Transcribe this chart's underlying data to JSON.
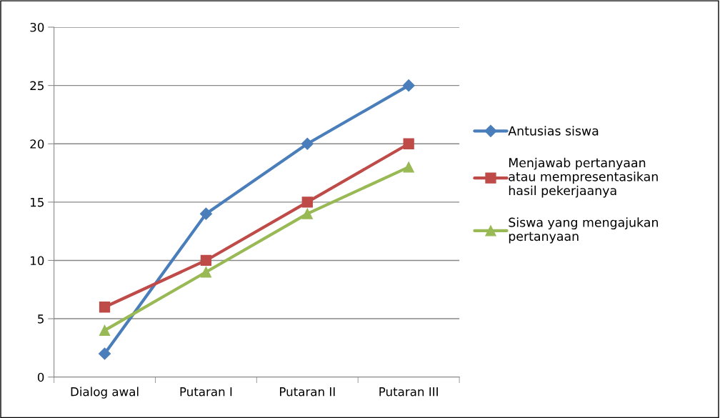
{
  "chart_data": {
    "type": "line",
    "categories": [
      "Dialog awal",
      "Putaran I",
      "Putaran II",
      "Putaran III"
    ],
    "series": [
      {
        "name": "Antusias siswa",
        "color": "#4a7ebb",
        "marker": "diamond",
        "values": [
          2,
          14,
          20,
          25
        ]
      },
      {
        "name": "Menjawab pertanyaan\natau mempresentasikan\nhasil pekerjaanya",
        "color": "#be4b48",
        "marker": "square",
        "values": [
          6,
          10,
          15,
          20
        ]
      },
      {
        "name": "Siswa yang mengajukan\npertanyaan",
        "color": "#98b954",
        "marker": "triangle",
        "values": [
          4,
          9,
          14,
          18
        ]
      }
    ],
    "ylim": [
      0,
      30
    ],
    "yticks": [
      0,
      5,
      10,
      15,
      20,
      25,
      30
    ],
    "grid": "y",
    "legend": "right",
    "line_style": "solid"
  }
}
